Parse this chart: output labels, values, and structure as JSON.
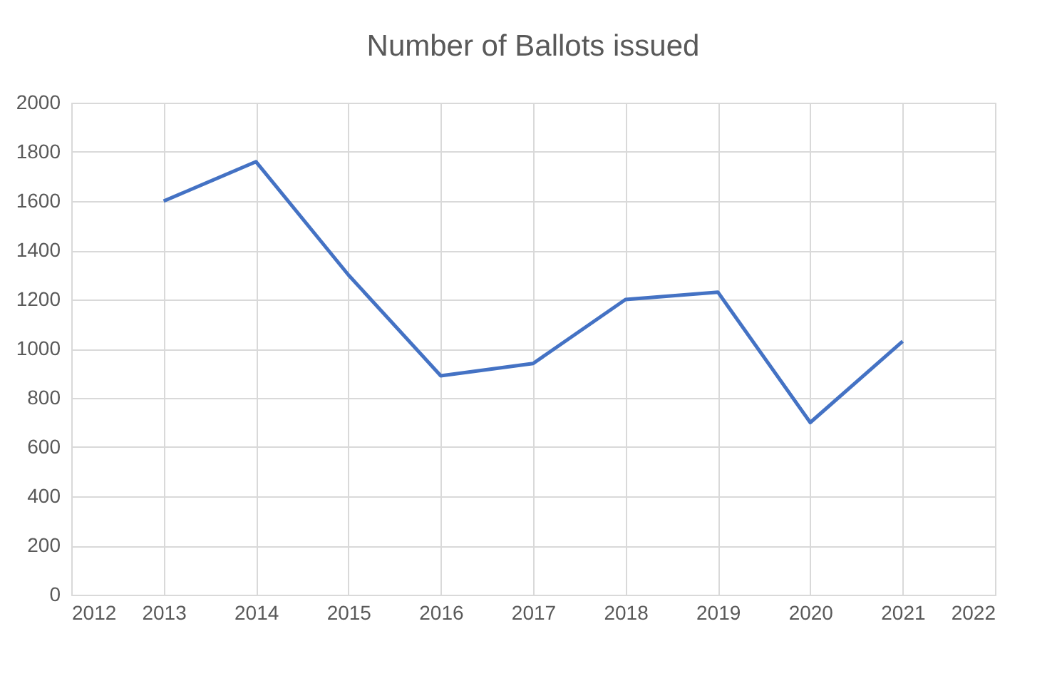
{
  "chart_data": {
    "type": "line",
    "title": "Number of Ballots issued",
    "x": [
      2013,
      2014,
      2015,
      2016,
      2017,
      2018,
      2019,
      2020,
      2021
    ],
    "series": [
      {
        "color": "#4472c4",
        "values": [
          1600,
          1760,
          1300,
          890,
          940,
          1200,
          1230,
          700,
          1030
        ]
      }
    ],
    "xlim": [
      2012,
      2022
    ],
    "xticks": [
      2012,
      2013,
      2014,
      2015,
      2016,
      2017,
      2018,
      2019,
      2020,
      2021,
      2022
    ],
    "ylim": [
      0,
      2000
    ],
    "yticks": [
      0,
      200,
      400,
      600,
      800,
      1000,
      1200,
      1400,
      1600,
      1800,
      2000
    ],
    "grid": true,
    "marker": "none",
    "line_style": "solid"
  }
}
